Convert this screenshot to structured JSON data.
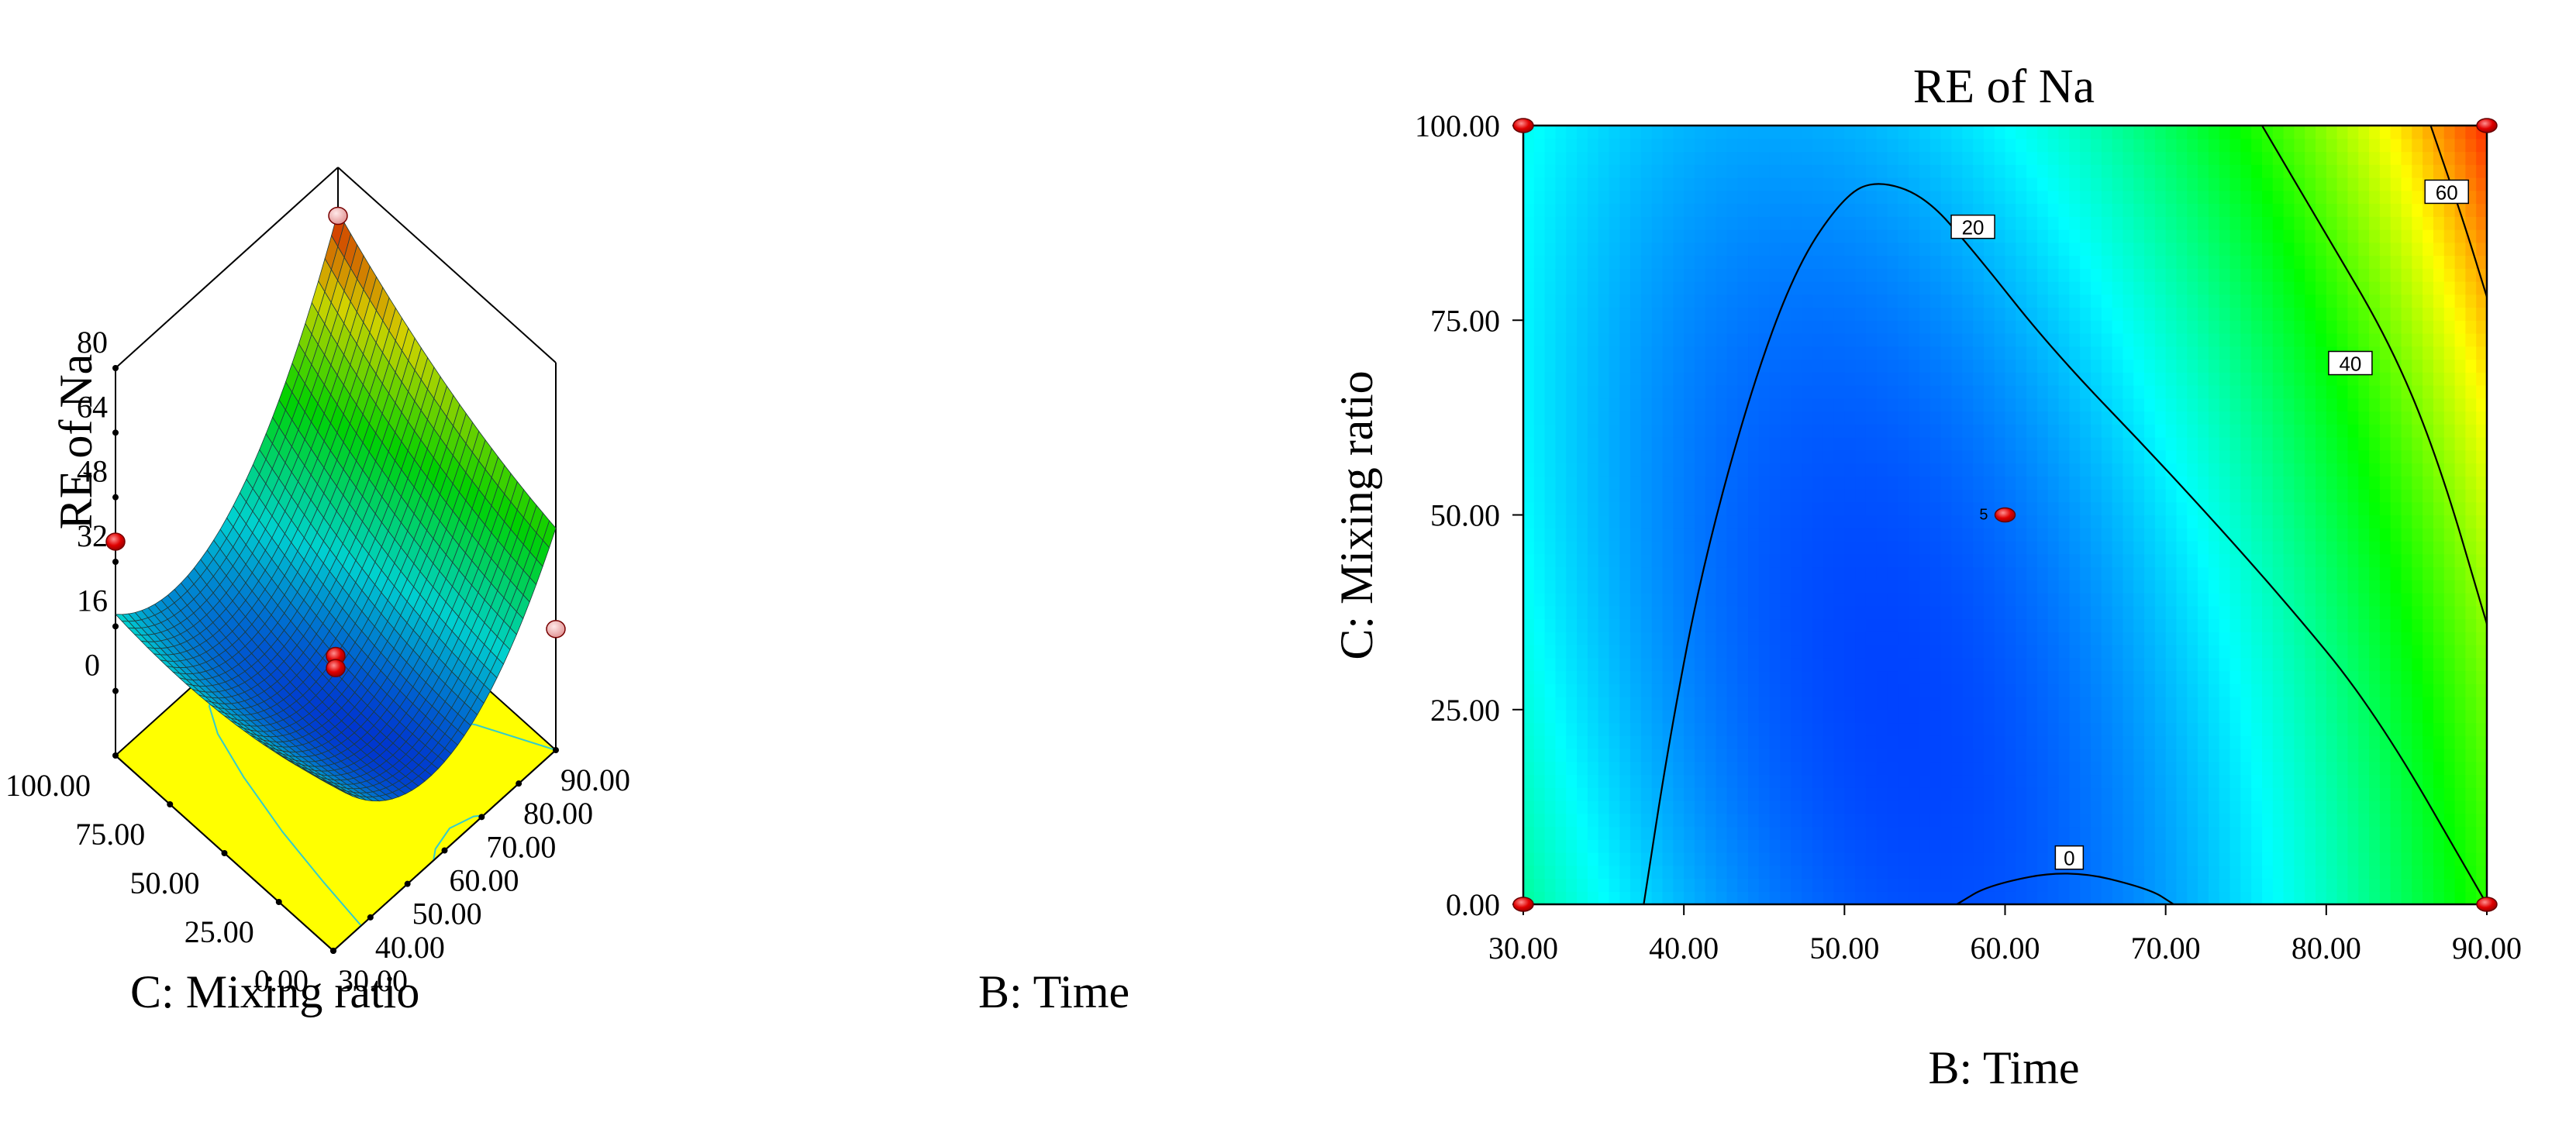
{
  "chart_data": [
    {
      "type": "surface3d",
      "title": "",
      "zlabel": "RE of  Na",
      "xlabel": "B: Time",
      "ylabel": "C: Mixing ratio",
      "x_ticks": [
        "30.00",
        "40.00",
        "50.00",
        "60.00",
        "70.00",
        "80.00",
        "90.00"
      ],
      "y_ticks": [
        "0.00",
        "25.00",
        "50.00",
        "75.00",
        "100.00"
      ],
      "z_ticks": [
        "0",
        "16",
        "32",
        "48",
        "64",
        "80"
      ],
      "xlim": [
        30,
        90
      ],
      "ylim": [
        0,
        100
      ],
      "zlim": [
        -16,
        80
      ],
      "design_points": [
        {
          "x": 30,
          "y": 100,
          "z": 37
        },
        {
          "x": 60,
          "y": 50,
          "z": 8
        },
        {
          "x": 60,
          "y": 50,
          "z": 5
        },
        {
          "x": 90,
          "y": 100,
          "z": 68
        },
        {
          "x": 90,
          "y": 0,
          "z": 14
        }
      ],
      "surface_colormap": "blue-cyan-green-yellow-red",
      "floor_color": "#ffff00"
    },
    {
      "type": "contour",
      "title": "RE of  Na",
      "xlabel": "B: Time",
      "ylabel": "C: Mixing ratio",
      "x_ticks": [
        "30.00",
        "40.00",
        "50.00",
        "60.00",
        "70.00",
        "80.00",
        "90.00"
      ],
      "y_ticks": [
        "0.00",
        "25.00",
        "50.00",
        "75.00",
        "100.00"
      ],
      "xlim": [
        30,
        90
      ],
      "ylim": [
        0,
        100
      ],
      "contour_levels": [
        "0",
        "20",
        "40",
        "60"
      ],
      "contour_lines": [
        {
          "level": "0",
          "points": [
            [
              57,
              0
            ],
            [
              59,
              2.5
            ],
            [
              64,
              4.5
            ],
            [
              69,
              2
            ],
            [
              70.5,
              0
            ]
          ]
        },
        {
          "level": "20",
          "points": [
            [
              37.5,
              0
            ],
            [
              39,
              20
            ],
            [
              41,
              42
            ],
            [
              44,
              65
            ],
            [
              47,
              82
            ],
            [
              50,
              91
            ],
            [
              52,
              93
            ],
            [
              55,
              91
            ],
            [
              58,
              84
            ],
            [
              63,
              71
            ],
            [
              70,
              56
            ],
            [
              77,
              40
            ],
            [
              83,
              25
            ],
            [
              90,
              0
            ]
          ]
        },
        {
          "level": "40",
          "points": [
            [
              76,
              100
            ],
            [
              80,
              86
            ],
            [
              84,
              72
            ],
            [
              87,
              57
            ],
            [
              90,
              36
            ]
          ]
        },
        {
          "level": "60",
          "points": [
            [
              86.5,
              100
            ],
            [
              88.5,
              88
            ],
            [
              90,
              78
            ]
          ]
        }
      ],
      "contour_label_positions": [
        {
          "level": "20",
          "x": 58,
          "y": 87
        },
        {
          "level": "40",
          "x": 81.5,
          "y": 69.5
        },
        {
          "level": "60",
          "x": 87.5,
          "y": 91.5
        },
        {
          "level": "0",
          "x": 64,
          "y": 6
        }
      ],
      "design_points": [
        {
          "x": 30,
          "y": 100
        },
        {
          "x": 90,
          "y": 100
        },
        {
          "x": 30,
          "y": 0
        },
        {
          "x": 90,
          "y": 0
        },
        {
          "x": 60,
          "y": 50
        }
      ],
      "center_point_label": "5",
      "colors": {
        "blue": "#0000ff",
        "cyan": "#00ffff",
        "green": "#00ff00",
        "yellow": "#ffff00",
        "red": "#ff0000"
      }
    }
  ]
}
